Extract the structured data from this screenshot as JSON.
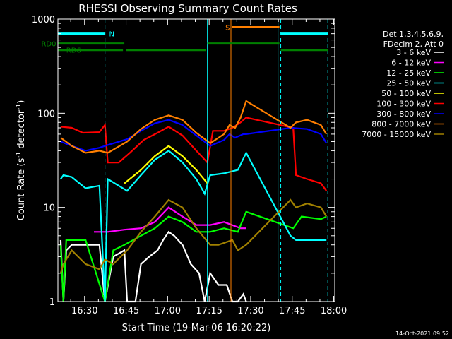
{
  "chart_data": {
    "type": "line",
    "title": "RHESSI Observing Summary Count Rates",
    "xlabel": "Start Time (19-Mar-06 16:20:22)",
    "ylabel_main": "Count Rate (s",
    "ylabel_sup1": "-1",
    "ylabel_mid": " detector",
    "ylabel_sup2": "-1",
    "ylabel_end": ")",
    "y_scale": "log",
    "ylim": [
      1,
      1000
    ],
    "xlim_minutes": [
      0,
      100
    ],
    "x_ticks": [
      {
        "label": "16:30",
        "t": 9.63
      },
      {
        "label": "16:45",
        "t": 24.63
      },
      {
        "label": "17:00",
        "t": 39.63
      },
      {
        "label": "17:15",
        "t": 54.63
      },
      {
        "label": "17:30",
        "t": 69.63
      },
      {
        "label": "17:45",
        "t": 84.63
      },
      {
        "label": "18:00",
        "t": 99.63
      }
    ],
    "y_ticks": [
      {
        "label": "1",
        "v": 1
      },
      {
        "label": "10",
        "v": 10
      },
      {
        "label": "100",
        "v": 100
      },
      {
        "label": "1000",
        "v": 1000
      }
    ],
    "legend_header": [
      "Det 1,3,4,5,6,9,",
      "FDecim 2, Att 0"
    ],
    "series": [
      {
        "name": "3 - 6 keV",
        "color": "#ffffff",
        "points": [
          [
            1,
            4.5
          ],
          [
            2,
            1
          ],
          [
            3,
            3.5
          ],
          [
            5,
            4
          ],
          [
            10,
            4
          ],
          [
            15,
            4
          ],
          [
            17,
            1
          ],
          [
            20,
            3
          ],
          [
            24,
            3.5
          ],
          [
            25,
            1
          ],
          [
            28,
            1
          ],
          [
            30,
            2.5
          ],
          [
            33,
            3
          ],
          [
            36,
            3.5
          ],
          [
            38,
            4.5
          ],
          [
            40,
            5.5
          ],
          [
            42,
            5
          ],
          [
            45,
            4
          ],
          [
            48,
            2.5
          ],
          [
            51,
            2
          ],
          [
            53,
            1
          ],
          [
            55,
            2
          ],
          [
            58,
            1.5
          ],
          [
            61,
            1.5
          ],
          [
            63,
            1
          ],
          [
            65,
            1
          ],
          [
            67,
            1.2
          ],
          [
            68,
            1
          ]
        ]
      },
      {
        "name": "6 - 12 keV",
        "color": "#ff00ff",
        "points": [
          [
            13,
            5.5
          ],
          [
            18,
            5.5
          ],
          [
            24,
            5.8
          ],
          [
            30,
            6
          ],
          [
            35,
            7
          ],
          [
            40,
            10
          ],
          [
            45,
            8
          ],
          [
            50,
            6.5
          ],
          [
            55,
            6.5
          ],
          [
            60,
            7
          ],
          [
            66,
            6
          ],
          [
            68,
            6
          ]
        ]
      },
      {
        "name": "12 - 25 keV",
        "color": "#00ff00",
        "points": [
          [
            1,
            4
          ],
          [
            2,
            1
          ],
          [
            3,
            4.5
          ],
          [
            10,
            4.5
          ],
          [
            17,
            1
          ],
          [
            20,
            3.5
          ],
          [
            24,
            4
          ],
          [
            30,
            5
          ],
          [
            35,
            6
          ],
          [
            40,
            8
          ],
          [
            45,
            7
          ],
          [
            50,
            5.5
          ],
          [
            55,
            5.5
          ],
          [
            60,
            6
          ],
          [
            65,
            5.5
          ],
          [
            68,
            9
          ],
          [
            85,
            6
          ],
          [
            88,
            8
          ],
          [
            95,
            7.5
          ],
          [
            97,
            8
          ]
        ]
      },
      {
        "name": "25 - 50 keV",
        "color": "#00ffff",
        "points": [
          [
            1,
            20
          ],
          [
            2,
            22
          ],
          [
            5,
            21
          ],
          [
            10,
            16
          ],
          [
            15,
            17
          ],
          [
            17,
            1
          ],
          [
            18,
            20
          ],
          [
            25,
            15
          ],
          [
            30,
            22
          ],
          [
            35,
            32
          ],
          [
            40,
            40
          ],
          [
            45,
            30
          ],
          [
            50,
            20
          ],
          [
            53,
            14
          ],
          [
            55,
            22
          ],
          [
            60,
            23
          ],
          [
            65,
            25
          ],
          [
            68,
            38
          ],
          [
            84,
            5
          ],
          [
            86,
            4.5
          ],
          [
            89,
            4.5
          ],
          [
            95,
            4.5
          ],
          [
            97,
            4.5
          ]
        ]
      },
      {
        "name": "50 - 100 keV",
        "color": "#ffff00",
        "points": [
          [
            24,
            18
          ],
          [
            30,
            25
          ],
          [
            35,
            35
          ],
          [
            40,
            45
          ],
          [
            45,
            35
          ],
          [
            50,
            25
          ],
          [
            54,
            18
          ]
        ]
      },
      {
        "name": "100 - 300 keV",
        "color": "#ff0000",
        "points": [
          [
            1,
            72
          ],
          [
            5,
            70
          ],
          [
            9,
            62
          ],
          [
            15,
            63
          ],
          [
            17,
            75
          ],
          [
            18,
            30
          ],
          [
            22,
            30
          ],
          [
            26,
            38
          ],
          [
            31,
            52
          ],
          [
            36,
            62
          ],
          [
            40,
            72
          ],
          [
            45,
            58
          ],
          [
            50,
            40
          ],
          [
            54,
            30
          ],
          [
            56,
            65
          ],
          [
            60,
            65
          ],
          [
            63,
            70
          ],
          [
            66,
            80
          ],
          [
            68,
            90
          ],
          [
            85,
            70
          ],
          [
            86,
            22
          ],
          [
            90,
            20
          ],
          [
            95,
            18
          ],
          [
            97,
            15
          ]
        ]
      },
      {
        "name": "300 - 800 keV",
        "color": "#0000ff",
        "points": [
          [
            1,
            50
          ],
          [
            5,
            45
          ],
          [
            10,
            40
          ],
          [
            15,
            43
          ],
          [
            18,
            46
          ],
          [
            25,
            53
          ],
          [
            30,
            65
          ],
          [
            35,
            78
          ],
          [
            40,
            85
          ],
          [
            45,
            75
          ],
          [
            50,
            58
          ],
          [
            55,
            45
          ],
          [
            60,
            52
          ],
          [
            62,
            60
          ],
          [
            64,
            55
          ],
          [
            67,
            60
          ],
          [
            68,
            60
          ],
          [
            84,
            70
          ],
          [
            90,
            68
          ],
          [
            95,
            60
          ],
          [
            97,
            48
          ]
        ]
      },
      {
        "name": "800 - 7000 keV",
        "color": "#ff7f00",
        "points": [
          [
            1,
            55
          ],
          [
            5,
            45
          ],
          [
            10,
            38
          ],
          [
            15,
            40
          ],
          [
            18,
            38
          ],
          [
            25,
            50
          ],
          [
            30,
            68
          ],
          [
            35,
            85
          ],
          [
            40,
            95
          ],
          [
            45,
            85
          ],
          [
            50,
            62
          ],
          [
            55,
            48
          ],
          [
            60,
            60
          ],
          [
            62,
            75
          ],
          [
            64,
            70
          ],
          [
            66,
            90
          ],
          [
            68,
            135
          ],
          [
            84,
            70
          ],
          [
            86,
            80
          ],
          [
            90,
            85
          ],
          [
            95,
            75
          ],
          [
            97,
            60
          ]
        ]
      },
      {
        "name": "7000 - 15000 keV",
        "color": "#a08000",
        "points": [
          [
            1,
            2
          ],
          [
            2,
            2.5
          ],
          [
            5,
            3.5
          ],
          [
            10,
            2.5
          ],
          [
            15,
            2.2
          ],
          [
            17,
            2.8
          ],
          [
            20,
            2.5
          ],
          [
            25,
            3.5
          ],
          [
            30,
            5.5
          ],
          [
            35,
            8
          ],
          [
            40,
            12
          ],
          [
            45,
            10
          ],
          [
            50,
            6
          ],
          [
            55,
            4
          ],
          [
            58,
            4
          ],
          [
            63,
            4.5
          ],
          [
            65,
            3.5
          ],
          [
            68,
            4
          ],
          [
            84,
            12
          ],
          [
            86,
            10
          ],
          [
            90,
            11
          ],
          [
            95,
            10
          ],
          [
            97,
            8
          ]
        ]
      }
    ],
    "vertical_markers": [
      {
        "t": 17.0,
        "color": "#00ffff",
        "dashed": true
      },
      {
        "t": 54.0,
        "color": "#00ffff",
        "dashed": false
      },
      {
        "t": 62.5,
        "color": "#ff7f00",
        "dashed": false
      },
      {
        "t": 79.5,
        "color": "#00ffff",
        "dashed": false
      },
      {
        "t": 80.5,
        "color": "#00ffff",
        "dashed": true
      },
      {
        "t": 97.5,
        "color": "#00ffff",
        "dashed": true
      }
    ],
    "flag_bars": [
      {
        "label": "N",
        "color": "#00ffff",
        "y": 700,
        "segments": [
          [
            0,
            17
          ],
          [
            80.5,
            97.5
          ]
        ],
        "label_t": 18.5
      },
      {
        "label": "S",
        "color": "#ff7f00",
        "y": 820,
        "segments": [
          [
            63,
            80
          ]
        ],
        "label_t": 60.5
      },
      {
        "label": "RD0",
        "color": "#008000",
        "y": 550,
        "segments": [
          [
            0,
            24
          ],
          [
            54,
            80
          ]
        ],
        "label_t": -6
      },
      {
        "label": "RD6",
        "color": "#008000",
        "y": 470,
        "segments": [
          [
            0,
            23.5
          ],
          [
            24.5,
            53.5
          ],
          [
            80.5,
            97.5
          ]
        ],
        "label_t": 3
      }
    ]
  },
  "footer": {
    "timestamp": "14-Oct-2021 09:52"
  }
}
